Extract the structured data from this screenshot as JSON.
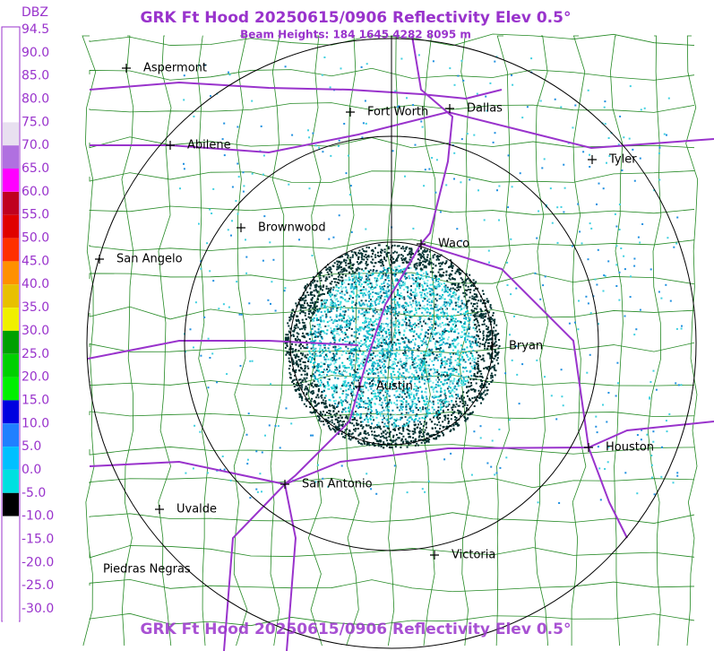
{
  "header": {
    "title": "GRK Ft Hood 20250615/0906 Reflectivity Elev 0.5°",
    "subtitle": "Beam Heights: 184 1645 4282 8095 m"
  },
  "footer": {
    "title": "GRK Ft Hood 20250615/0906 Reflectivity Elev 0.5°"
  },
  "legend": {
    "unit": "DBZ",
    "labels": [
      "94.5",
      "90.0",
      "85.0",
      "80.0",
      "75.0",
      "70.0",
      "65.0",
      "60.0",
      "55.0",
      "50.0",
      "45.0",
      "40.0",
      "35.0",
      "30.0",
      "25.0",
      "20.0",
      "15.0",
      "10.0",
      "5.0",
      "0.0",
      "-5.0",
      "-10.0",
      "-15.0",
      "-20.0",
      "-25.0",
      "-30.0"
    ],
    "colors": [
      "#ffffff",
      "#ffffff",
      "#ffffff",
      "#ffffff",
      "#e8e0f0",
      "#b070e0",
      "#ff00ff",
      "#c00020",
      "#e00000",
      "#ff3000",
      "#ff9000",
      "#e8c000",
      "#f0f000",
      "#00a000",
      "#00d000",
      "#00f000",
      "#0000e0",
      "#2080ff",
      "#00c0ff",
      "#00e0e0",
      "#000000",
      "#ffffff",
      "#ffffff",
      "#ffffff",
      "#ffffff",
      "#ffffff"
    ]
  },
  "cities": [
    "Aspermont",
    "Fort Worth",
    "Dallas",
    "Abilene",
    "Tyler",
    "Brownwood",
    "Waco",
    "San Angelo",
    "Bryan",
    "Austin",
    "Houston",
    "San Antonio",
    "Uvalde",
    "Victoria",
    "Piedras Negras"
  ]
}
